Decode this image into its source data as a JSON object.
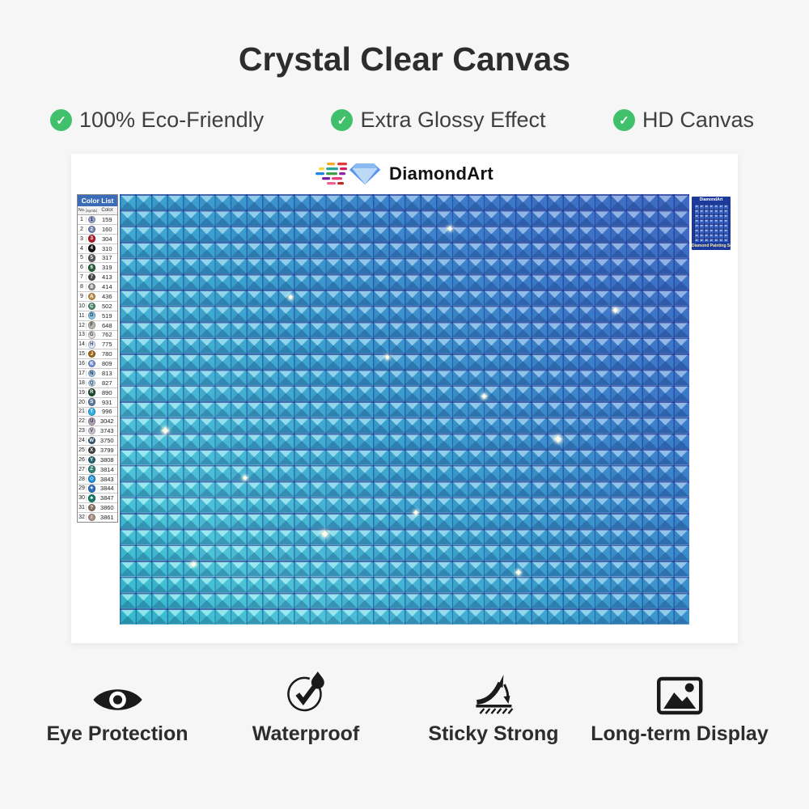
{
  "title": "Crystal Clear Canvas",
  "features": [
    {
      "label": "100% Eco-Friendly"
    },
    {
      "label": "Extra Glossy Effect"
    },
    {
      "label": "HD Canvas"
    }
  ],
  "brand": {
    "name": "DiamondArt"
  },
  "color_list": {
    "title": "Color List",
    "columns": {
      "no": "No.",
      "symbol": "Symbol",
      "color": "Color"
    },
    "rows": [
      {
        "no": "1",
        "symbol": "1",
        "code": "159",
        "color": "#96a4cc",
        "fg": "#26324e"
      },
      {
        "no": "2",
        "symbol": "2",
        "code": "160",
        "color": "#7283b4",
        "fg": "#ffffff"
      },
      {
        "no": "3",
        "symbol": "3",
        "code": "304",
        "color": "#b01e2e",
        "fg": "#ffffff"
      },
      {
        "no": "4",
        "symbol": "4",
        "code": "310",
        "color": "#141414",
        "fg": "#ffffff"
      },
      {
        "no": "5",
        "symbol": "5",
        "code": "317",
        "color": "#5c5c60",
        "fg": "#ffffff"
      },
      {
        "no": "6",
        "symbol": "6",
        "code": "319",
        "color": "#27603a",
        "fg": "#ffffff"
      },
      {
        "no": "7",
        "symbol": "7",
        "code": "413",
        "color": "#49494d",
        "fg": "#ffffff"
      },
      {
        "no": "8",
        "symbol": "8",
        "code": "414",
        "color": "#8f9094",
        "fg": "#ffffff"
      },
      {
        "no": "9",
        "symbol": "A",
        "code": "436",
        "color": "#c38f4a",
        "fg": "#ffffff"
      },
      {
        "no": "10",
        "symbol": "C",
        "code": "502",
        "color": "#4b8a6a",
        "fg": "#ffffff"
      },
      {
        "no": "11",
        "symbol": "D",
        "code": "519",
        "color": "#8ec4e4",
        "fg": "#1d3a52"
      },
      {
        "no": "12",
        "symbol": "F",
        "code": "648",
        "color": "#b9b9ae",
        "fg": "#333333"
      },
      {
        "no": "13",
        "symbol": "G",
        "code": "762",
        "color": "#dcdcdc",
        "fg": "#444444"
      },
      {
        "no": "14",
        "symbol": "H",
        "code": "775",
        "color": "#dce8f4",
        "fg": "#3a4a66"
      },
      {
        "no": "15",
        "symbol": "J",
        "code": "780",
        "color": "#a06a14",
        "fg": "#ffffff"
      },
      {
        "no": "16",
        "symbol": "K",
        "code": "809",
        "color": "#7592d8",
        "fg": "#ffffff"
      },
      {
        "no": "17",
        "symbol": "N",
        "code": "813",
        "color": "#9ec0e2",
        "fg": "#1d3a52"
      },
      {
        "no": "18",
        "symbol": "Q",
        "code": "827",
        "color": "#bcd8ee",
        "fg": "#2a4a66"
      },
      {
        "no": "19",
        "symbol": "R",
        "code": "890",
        "color": "#1c4a2c",
        "fg": "#ffffff"
      },
      {
        "no": "20",
        "symbol": "S",
        "code": "931",
        "color": "#5e7ca0",
        "fg": "#ffffff"
      },
      {
        "no": "21",
        "symbol": "T",
        "code": "996",
        "color": "#2fb0e8",
        "fg": "#ffffff"
      },
      {
        "no": "22",
        "symbol": "U",
        "code": "3042",
        "color": "#b3a3b8",
        "fg": "#3e3344"
      },
      {
        "no": "23",
        "symbol": "V",
        "code": "3743",
        "color": "#cfc5d8",
        "fg": "#444444"
      },
      {
        "no": "24",
        "symbol": "W",
        "code": "3750",
        "color": "#35576e",
        "fg": "#ffffff"
      },
      {
        "no": "25",
        "symbol": "X",
        "code": "3799",
        "color": "#404046",
        "fg": "#ffffff"
      },
      {
        "no": "26",
        "symbol": "Y",
        "code": "3808",
        "color": "#23646e",
        "fg": "#ffffff"
      },
      {
        "no": "27",
        "symbol": "Z",
        "code": "3814",
        "color": "#2f8577",
        "fg": "#ffffff"
      },
      {
        "no": "28",
        "symbol": "◇",
        "code": "3843",
        "color": "#1e90d8",
        "fg": "#ffffff"
      },
      {
        "no": "29",
        "symbol": "✦",
        "code": "3844",
        "color": "#2f6fc0",
        "fg": "#ffffff"
      },
      {
        "no": "30",
        "symbol": "♣",
        "code": "3847",
        "color": "#157a6a",
        "fg": "#ffffff"
      },
      {
        "no": "31",
        "symbol": "?",
        "code": "3860",
        "color": "#8d7265",
        "fg": "#ffffff"
      },
      {
        "no": "32",
        "symbol": "/",
        "code": "3861",
        "color": "#ab9184",
        "fg": "#ffffff"
      }
    ]
  },
  "package_thumb": {
    "brand": "DiamondArt",
    "label": "Diamond Painting Set"
  },
  "benefits": [
    {
      "label": "Eye Protection"
    },
    {
      "label": "Waterproof"
    },
    {
      "label": "Sticky Strong"
    },
    {
      "label": "Long-term Display"
    }
  ],
  "colors": {
    "accent_green": "#41c06c",
    "canvas_gradient_bottom_left": "#38ccd8",
    "canvas_gradient_top_right": "#4472ce",
    "canvas_grid_line": "#0a1a7a",
    "color_list_header_bg": "#3a6cb8",
    "package_bg": "#1b3a9c",
    "text_dark": "#2d2d2d"
  }
}
